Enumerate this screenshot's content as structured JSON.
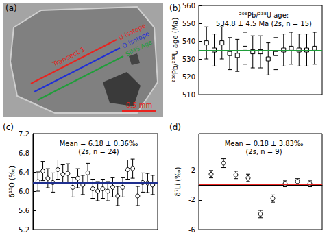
{
  "chart_data": [
    {
      "type": "image",
      "panel_label": "(a)",
      "annotations": [
        {
          "text": "Transect 1",
          "color": "#e8231f"
        },
        {
          "text": "U isotope",
          "color": "#e8231f"
        },
        {
          "text": "O isotope",
          "color": "#1f2fd6"
        },
        {
          "text": "SIMS Age",
          "color": "#1f9e3a"
        },
        {
          "text": "0.5 mm",
          "color": "#e8231f"
        }
      ]
    },
    {
      "type": "scatter",
      "panel_label": "(b)",
      "title": "²⁰⁶Pb/²³⁸U age:\n534.8 ± 4.5 Ma (2s, n = 15)",
      "ylabel": "²⁰⁶Pb/²³⁸U age (Ma)",
      "x": [
        1,
        2,
        3,
        4,
        5,
        6,
        7,
        8,
        9,
        10,
        11,
        12,
        13,
        14,
        15
      ],
      "values": [
        539,
        535,
        539,
        533,
        532,
        536,
        534,
        534,
        530,
        533,
        535,
        536,
        535,
        535,
        536
      ],
      "error": [
        9,
        9,
        9,
        9,
        9,
        9,
        9,
        9,
        9,
        9,
        9,
        9,
        9,
        9,
        9
      ],
      "xlim": [
        0,
        16
      ],
      "ylim": [
        510,
        560
      ],
      "yticks": [
        510,
        520,
        530,
        540,
        550,
        560
      ],
      "marker": "square",
      "color": "#000000",
      "tick_labels": "y",
      "grid": false,
      "reference_line": {
        "value": 534.8,
        "color": "#1f9e3a"
      }
    },
    {
      "type": "scatter",
      "panel_label": "(c)",
      "title": "Mean = 6.18 ± 0.36‰\n(2s, n = 24)",
      "ylabel": "δ¹⁸O (‰)",
      "x": [
        1,
        2,
        3,
        4,
        5,
        6,
        7,
        8,
        9,
        10,
        11,
        12,
        13,
        14,
        15,
        16,
        17,
        18,
        19,
        20,
        21,
        22,
        23,
        24
      ],
      "values": [
        6.2,
        6.42,
        6.27,
        6.18,
        6.45,
        6.35,
        6.37,
        6.08,
        6.27,
        6.13,
        6.38,
        6.05,
        6.0,
        6.05,
        6.0,
        6.08,
        5.9,
        6.08,
        6.45,
        6.47,
        5.9,
        6.18,
        6.17,
        6.13
      ],
      "error": [
        0.2,
        0.2,
        0.2,
        0.2,
        0.2,
        0.2,
        0.2,
        0.2,
        0.2,
        0.2,
        0.2,
        0.2,
        0.2,
        0.2,
        0.2,
        0.2,
        0.2,
        0.2,
        0.2,
        0.2,
        0.2,
        0.2,
        0.2,
        0.2
      ],
      "xlim": [
        0,
        25
      ],
      "ylim": [
        5.2,
        7.2
      ],
      "yticks": [
        5.2,
        5.6,
        {
          "value": 6,
          "label": "6.0"
        },
        6.4,
        6.8,
        7.2
      ],
      "marker": "circle",
      "color": "#000000",
      "tick_labels": "y",
      "grid": false,
      "reference_line": {
        "value": 6.18,
        "color": "#1f2f8f"
      }
    },
    {
      "type": "scatter",
      "panel_label": "(d)",
      "title": "Mean = 0.18 ± 3.83‰\n(2s, n = 9)",
      "ylabel": "δ⁷Li (‰)",
      "x": [
        1,
        2,
        3,
        4,
        5,
        6,
        7,
        8,
        9
      ],
      "values": [
        1.5,
        3.0,
        1.4,
        1.0,
        -3.9,
        -1.8,
        0.2,
        0.5,
        0.2
      ],
      "error": [
        0.5,
        0.6,
        0.5,
        0.5,
        0.5,
        0.5,
        0.4,
        0.4,
        0.4
      ],
      "xlim": [
        0,
        10
      ],
      "ylim": [
        -6,
        7
      ],
      "yticks": [
        -6,
        -2,
        2
      ],
      "marker": "circle",
      "color": "#000000",
      "tick_labels": "y",
      "grid": false,
      "reference_line": {
        "value": 0.18,
        "color": "#e8231f"
      }
    }
  ]
}
